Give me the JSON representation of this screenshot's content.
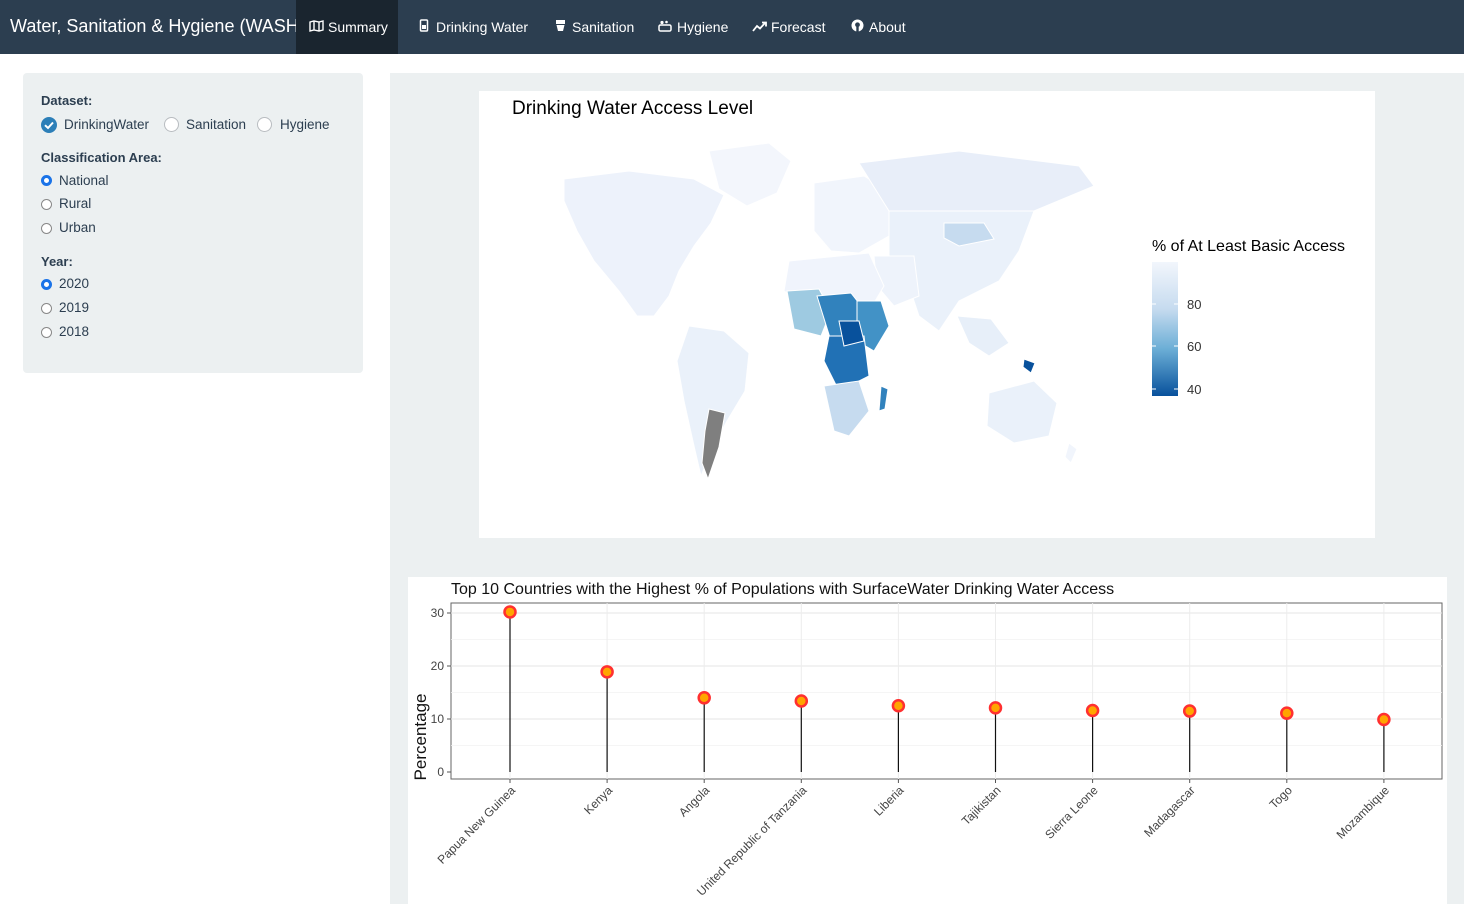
{
  "app": {
    "title": "Water, Sanitation & Hygiene (WASH)"
  },
  "nav": {
    "tabs": [
      {
        "label": "Summary",
        "icon": "map-icon"
      },
      {
        "label": "Drinking Water",
        "icon": "bottle-icon"
      },
      {
        "label": "Sanitation",
        "icon": "toilet-icon"
      },
      {
        "label": "Hygiene",
        "icon": "soap-icon"
      },
      {
        "label": "Forecast",
        "icon": "trend-up-icon"
      },
      {
        "label": "About",
        "icon": "github-icon"
      }
    ]
  },
  "sidebar": {
    "dataset": {
      "label": "Dataset:",
      "options": [
        "DrinkingWater",
        "Sanitation",
        "Hygiene"
      ],
      "selected": "DrinkingWater"
    },
    "area": {
      "label": "Classification Area:",
      "options": [
        "National",
        "Rural",
        "Urban"
      ],
      "selected": "National"
    },
    "year": {
      "label": "Year:",
      "options": [
        "2020",
        "2019",
        "2018"
      ],
      "selected": "2020"
    }
  },
  "map": {
    "title": "Drinking Water Access Level",
    "legend_title": "% of At Least Basic Access",
    "legend_ticks": [
      "80",
      "60",
      "40"
    ],
    "colors": {
      "high": "#eef3fb",
      "low": "#08519c",
      "missing": "#7f7f7f"
    }
  },
  "chart_data": {
    "type": "lollipop",
    "title": "Top 10 Countries with the Highest % of Populations with SurfaceWater Drinking Water Access",
    "xlabel": "",
    "ylabel": "Percentage",
    "categories": [
      "Papua New Guinea",
      "Kenya",
      "Angola",
      "United Republic of Tanzania",
      "Liberia",
      "Tajikistan",
      "Sierra Leone",
      "Madagascar",
      "Togo",
      "Mozambique"
    ],
    "values": [
      30.2,
      18.9,
      14.0,
      13.4,
      12.5,
      12.1,
      11.6,
      11.5,
      11.1,
      9.9
    ],
    "ylim": [
      0,
      31
    ],
    "yticks": [
      0,
      10,
      20,
      30
    ],
    "grid": true,
    "point_fill": "#ffa500",
    "point_edge": "#ff3030"
  }
}
